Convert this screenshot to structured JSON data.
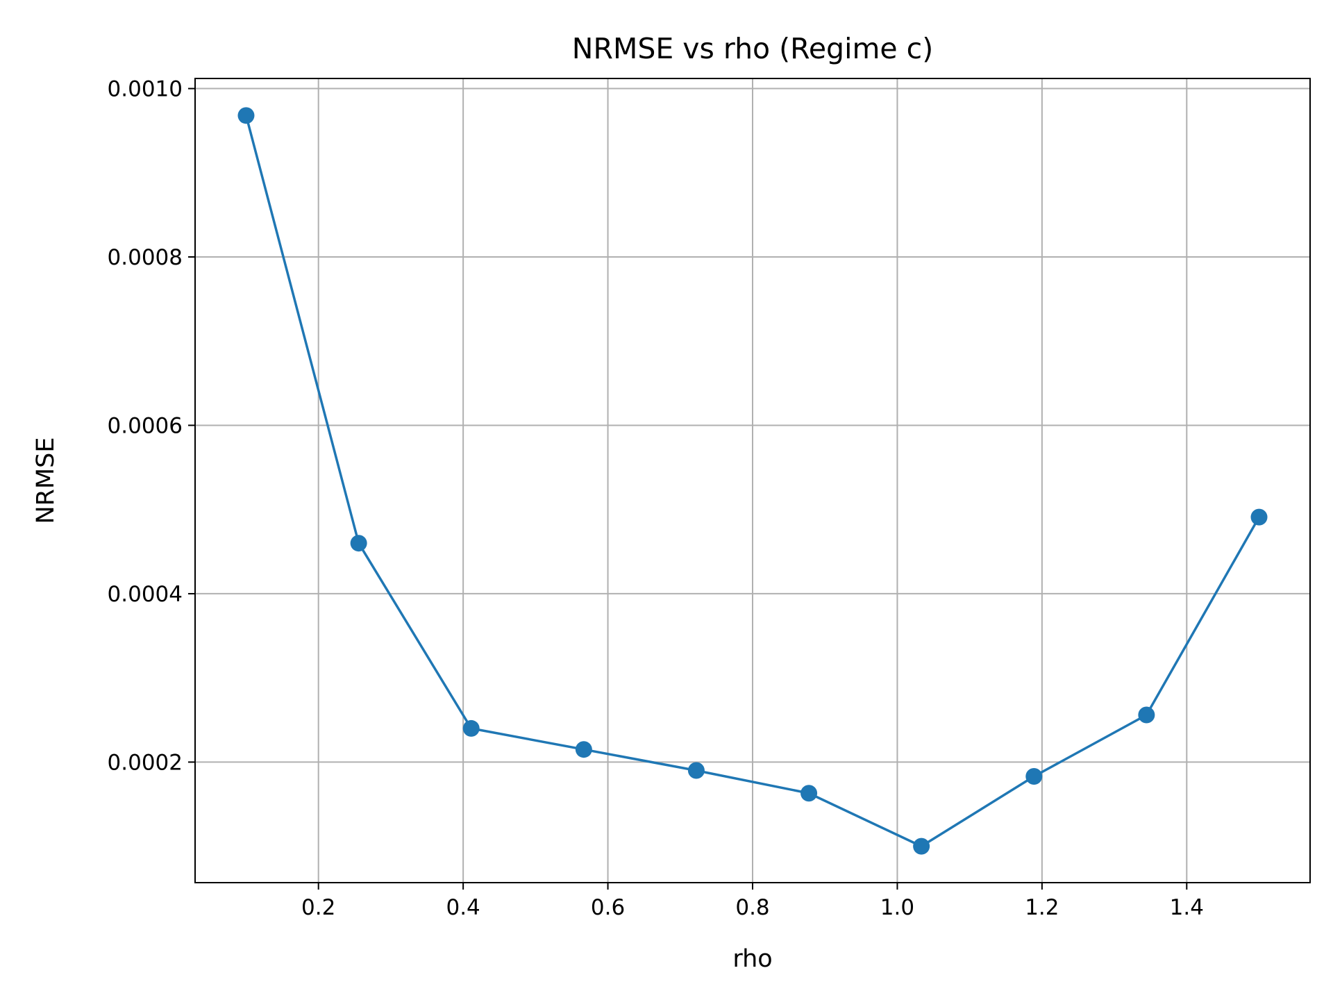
{
  "chart_data": {
    "type": "line",
    "title": "NRMSE vs rho (Regime c)",
    "xlabel": "rho",
    "ylabel": "NRMSE",
    "xlim": [
      0.0295,
      1.5705
    ],
    "ylim": [
      5.68e-05,
      0.001012
    ],
    "xticks": [
      0.2,
      0.4,
      0.6,
      0.8,
      1.0,
      1.2,
      1.4
    ],
    "xtick_labels": [
      "0.2",
      "0.4",
      "0.6",
      "0.8",
      "1.0",
      "1.2",
      "1.4"
    ],
    "yticks": [
      0.0002,
      0.0004,
      0.0006,
      0.0008,
      0.001
    ],
    "ytick_labels": [
      "0.0002",
      "0.0004",
      "0.0006",
      "0.0008",
      "0.0010"
    ],
    "grid": true,
    "series": [
      {
        "color": "#1f77b4",
        "marker": "circle",
        "x": [
          0.1,
          0.2556,
          0.4111,
          0.5667,
          0.7222,
          0.8778,
          1.0333,
          1.1889,
          1.3444,
          1.5
        ],
        "y": [
          0.000968,
          0.00046,
          0.00024,
          0.000215,
          0.00019,
          0.000163,
          0.0001,
          0.000183,
          0.000256,
          0.000491
        ]
      }
    ]
  }
}
